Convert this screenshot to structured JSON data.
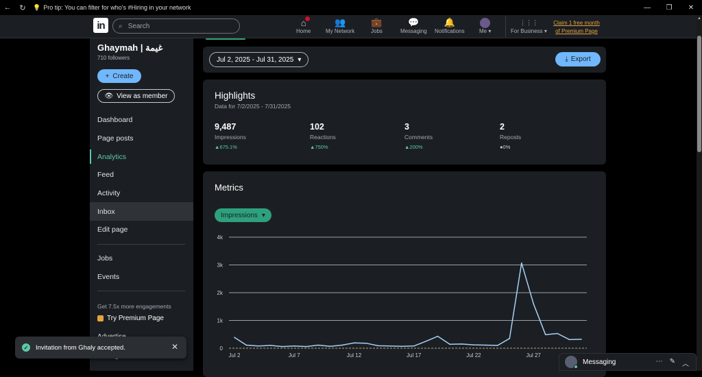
{
  "browser": {
    "tip": "Pro tip: You can filter for who's #Hiring in your network",
    "back_glyph": "←",
    "refresh_glyph": "↻",
    "window_controls": [
      "—",
      "❐",
      "✕"
    ]
  },
  "nav": {
    "logo": "in",
    "search_placeholder": "Search",
    "items": [
      {
        "label": "Home",
        "icon": "home-icon",
        "glyph": "⌂"
      },
      {
        "label": "My Network",
        "icon": "network-icon",
        "glyph": "👥"
      },
      {
        "label": "Jobs",
        "icon": "briefcase-icon",
        "glyph": "💼"
      },
      {
        "label": "Messaging",
        "icon": "chat-icon",
        "glyph": "💬"
      },
      {
        "label": "Notifications",
        "icon": "bell-icon",
        "glyph": "🔔"
      }
    ],
    "me_label": "Me ▾",
    "business_label": "For Business ▾",
    "business_glyph": "⋮⋮⋮",
    "premium_line1": "Claim 1 free month",
    "premium_line2": "of Premium Page"
  },
  "sidebar": {
    "name": "Ghaymah | غيمة",
    "followers": "710 followers",
    "create_label": "Create",
    "view_label": "View as member",
    "menu": [
      "Dashboard",
      "Page posts",
      "Analytics",
      "Feed",
      "Activity",
      "Inbox",
      "Edit page"
    ],
    "menu2": [
      "Jobs",
      "Events"
    ],
    "promo": "Get 7.5x more engagements",
    "try_premium": "Try Premium Page",
    "cut_1": "Advertise",
    "cut_2": "Settings"
  },
  "topbar": {
    "date_range": "Jul 2, 2025 - Jul 31, 2025",
    "export_label": "Export"
  },
  "highlights": {
    "title": "Highlights",
    "subtitle": "Data for 7/2/2025 - 7/31/2025",
    "stats": [
      {
        "value": "9,487",
        "label": "Impressions",
        "change": "▲675.1%"
      },
      {
        "value": "102",
        "label": "Reactions",
        "change": "▲750%"
      },
      {
        "value": "3",
        "label": "Comments",
        "change": "▲200%"
      },
      {
        "value": "2",
        "label": "Reposts",
        "change": "●0%"
      }
    ]
  },
  "metrics": {
    "title": "Metrics",
    "selector": "Impressions"
  },
  "chart_data": {
    "type": "line",
    "x": [
      "Jul 2",
      "Jul 3",
      "Jul 4",
      "Jul 5",
      "Jul 6",
      "Jul 7",
      "Jul 8",
      "Jul 9",
      "Jul 10",
      "Jul 11",
      "Jul 12",
      "Jul 13",
      "Jul 14",
      "Jul 15",
      "Jul 16",
      "Jul 17",
      "Jul 18",
      "Jul 19",
      "Jul 20",
      "Jul 21",
      "Jul 22",
      "Jul 23",
      "Jul 24",
      "Jul 25",
      "Jul 26",
      "Jul 27",
      "Jul 28",
      "Jul 29",
      "Jul 30",
      "Jul 31"
    ],
    "series": [
      {
        "values": [
          390,
          110,
          80,
          100,
          60,
          80,
          60,
          110,
          70,
          110,
          190,
          180,
          90,
          80,
          70,
          80,
          250,
          430,
          140,
          150,
          120,
          110,
          100,
          350,
          3070,
          1600,
          490,
          530,
          310,
          320
        ]
      }
    ],
    "xticks": [
      "Jul 2",
      "Jul 7",
      "Jul 12",
      "Jul 17",
      "Jul 22",
      "Jul 27"
    ],
    "yticks": [
      {
        "v": 0,
        "label": "0"
      },
      {
        "v": 1000,
        "label": "1k"
      },
      {
        "v": 2000,
        "label": "2k"
      },
      {
        "v": 3000,
        "label": "3k"
      },
      {
        "v": 4000,
        "label": "4k"
      }
    ],
    "ylim": [
      0,
      4000
    ],
    "line_color": "#a8cff5",
    "grid": true
  },
  "toast": {
    "message": "Invitation from Ghaly accepted."
  },
  "messaging": {
    "label": "Messaging",
    "actions": [
      "⋯",
      "✎",
      "︿"
    ]
  },
  "colors": {
    "accent_green": "#5ec8a8",
    "link_blue": "#71b7fb",
    "premium_gold": "#e7a33e"
  }
}
